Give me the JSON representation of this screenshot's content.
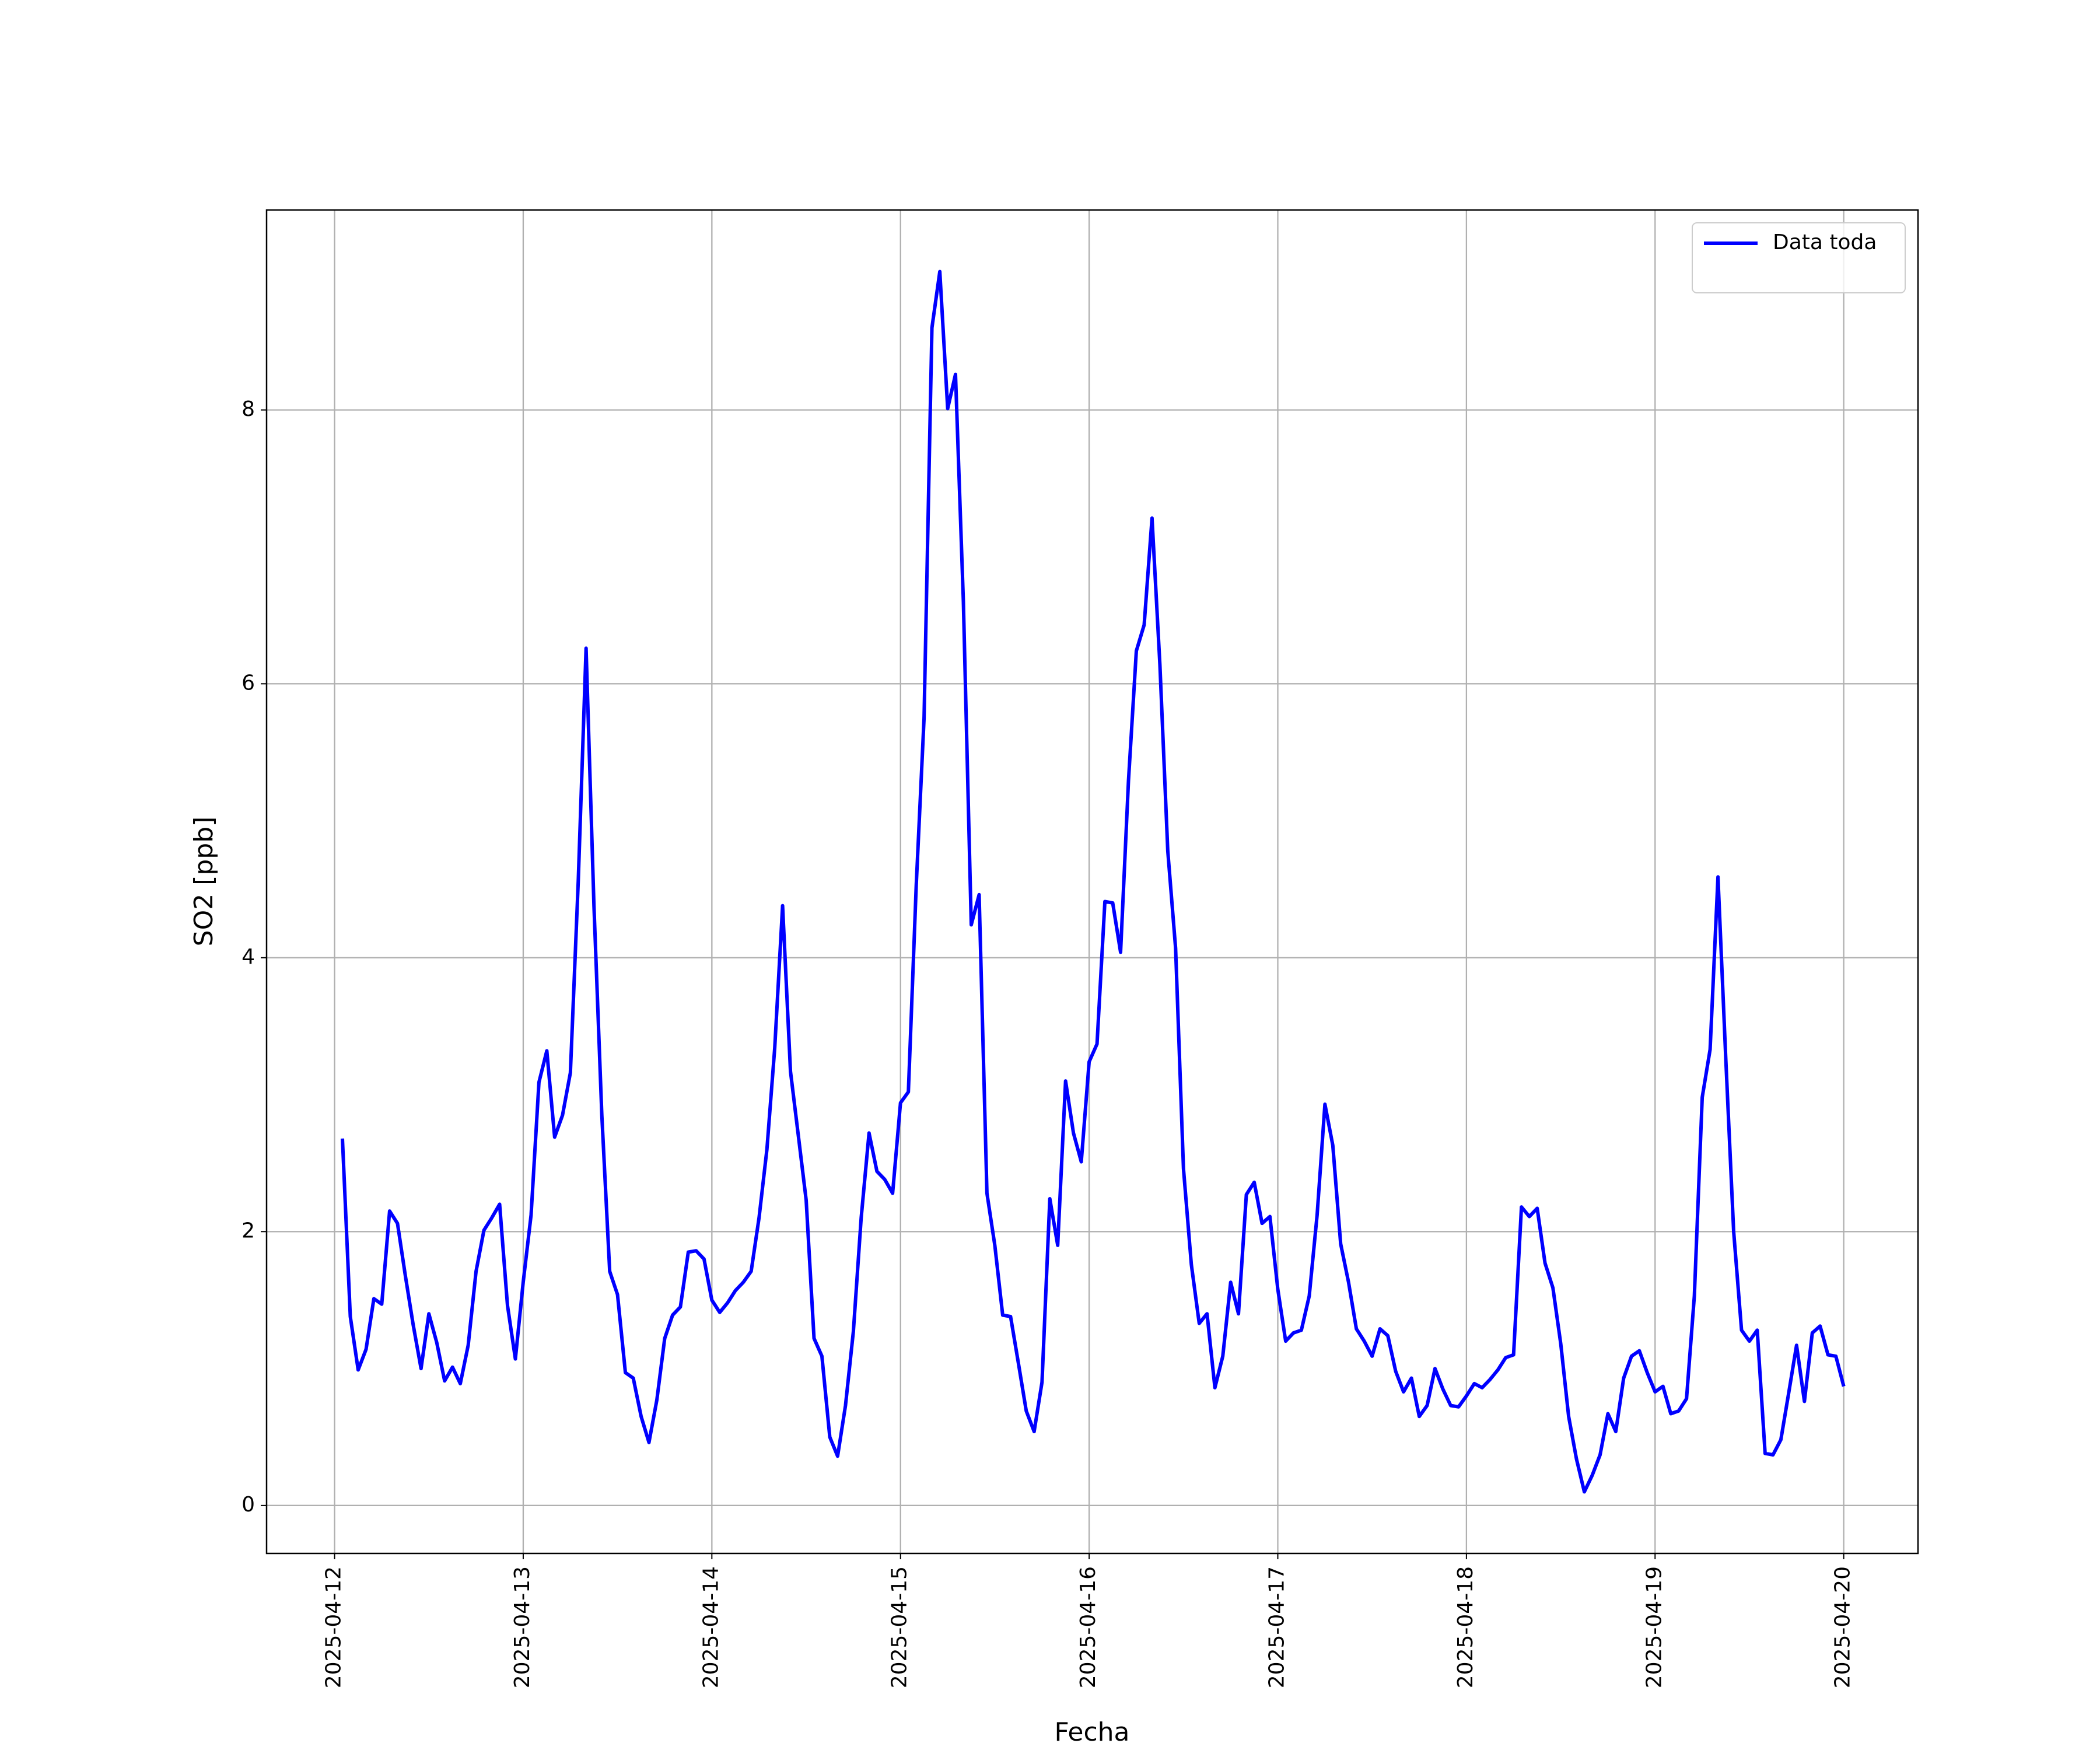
{
  "chart_data": {
    "type": "line",
    "x_label": "Fecha",
    "y_label": "SO2 [ppb]",
    "x": [
      "2025-04-12 01:00",
      "2025-04-12 02:00",
      "2025-04-12 03:00",
      "2025-04-12 04:00",
      "2025-04-12 05:00",
      "2025-04-12 06:00",
      "2025-04-12 07:00",
      "2025-04-12 08:00",
      "2025-04-12 09:00",
      "2025-04-12 10:00",
      "2025-04-12 11:00",
      "2025-04-12 12:00",
      "2025-04-12 13:00",
      "2025-04-12 14:00",
      "2025-04-12 15:00",
      "2025-04-12 16:00",
      "2025-04-12 17:00",
      "2025-04-12 18:00",
      "2025-04-12 19:00",
      "2025-04-12 20:00",
      "2025-04-12 21:00",
      "2025-04-12 22:00",
      "2025-04-12 23:00",
      "2025-04-13 00:00",
      "2025-04-13 01:00",
      "2025-04-13 02:00",
      "2025-04-13 03:00",
      "2025-04-13 04:00",
      "2025-04-13 05:00",
      "2025-04-13 06:00",
      "2025-04-13 07:00",
      "2025-04-13 08:00",
      "2025-04-13 09:00",
      "2025-04-13 10:00",
      "2025-04-13 11:00",
      "2025-04-13 12:00",
      "2025-04-13 13:00",
      "2025-04-13 14:00",
      "2025-04-13 15:00",
      "2025-04-13 16:00",
      "2025-04-13 17:00",
      "2025-04-13 18:00",
      "2025-04-13 19:00",
      "2025-04-13 20:00",
      "2025-04-13 21:00",
      "2025-04-13 22:00",
      "2025-04-13 23:00",
      "2025-04-14 00:00",
      "2025-04-14 01:00",
      "2025-04-14 02:00",
      "2025-04-14 03:00",
      "2025-04-14 04:00",
      "2025-04-14 05:00",
      "2025-04-14 06:00",
      "2025-04-14 07:00",
      "2025-04-14 08:00",
      "2025-04-14 09:00",
      "2025-04-14 10:00",
      "2025-04-14 11:00",
      "2025-04-14 12:00",
      "2025-04-14 13:00",
      "2025-04-14 14:00",
      "2025-04-14 15:00",
      "2025-04-14 16:00",
      "2025-04-14 17:00",
      "2025-04-14 18:00",
      "2025-04-14 19:00",
      "2025-04-14 20:00",
      "2025-04-14 21:00",
      "2025-04-14 22:00",
      "2025-04-14 23:00",
      "2025-04-15 00:00",
      "2025-04-15 01:00",
      "2025-04-15 02:00",
      "2025-04-15 03:00",
      "2025-04-15 04:00",
      "2025-04-15 05:00",
      "2025-04-15 06:00",
      "2025-04-15 07:00",
      "2025-04-15 08:00",
      "2025-04-15 09:00",
      "2025-04-15 10:00",
      "2025-04-15 11:00",
      "2025-04-15 12:00",
      "2025-04-15 13:00",
      "2025-04-15 14:00",
      "2025-04-15 15:00",
      "2025-04-15 16:00",
      "2025-04-15 17:00",
      "2025-04-15 18:00",
      "2025-04-15 19:00",
      "2025-04-15 20:00",
      "2025-04-15 21:00",
      "2025-04-15 22:00",
      "2025-04-15 23:00",
      "2025-04-16 00:00",
      "2025-04-16 01:00",
      "2025-04-16 02:00",
      "2025-04-16 03:00",
      "2025-04-16 04:00",
      "2025-04-16 05:00",
      "2025-04-16 06:00",
      "2025-04-16 07:00",
      "2025-04-16 08:00",
      "2025-04-16 09:00",
      "2025-04-16 10:00",
      "2025-04-16 11:00",
      "2025-04-16 12:00",
      "2025-04-16 13:00",
      "2025-04-16 14:00",
      "2025-04-16 15:00",
      "2025-04-16 16:00",
      "2025-04-16 17:00",
      "2025-04-16 18:00",
      "2025-04-16 19:00",
      "2025-04-16 20:00",
      "2025-04-16 21:00",
      "2025-04-16 22:00",
      "2025-04-16 23:00",
      "2025-04-17 00:00",
      "2025-04-17 01:00",
      "2025-04-17 02:00",
      "2025-04-17 03:00",
      "2025-04-17 04:00",
      "2025-04-17 05:00",
      "2025-04-17 06:00",
      "2025-04-17 07:00",
      "2025-04-17 08:00",
      "2025-04-17 09:00",
      "2025-04-17 10:00",
      "2025-04-17 11:00",
      "2025-04-17 12:00",
      "2025-04-17 13:00",
      "2025-04-17 14:00",
      "2025-04-17 15:00",
      "2025-04-17 16:00",
      "2025-04-17 17:00",
      "2025-04-17 18:00",
      "2025-04-17 19:00",
      "2025-04-17 20:00",
      "2025-04-17 21:00",
      "2025-04-17 22:00",
      "2025-04-17 23:00",
      "2025-04-18 00:00",
      "2025-04-18 01:00",
      "2025-04-18 02:00",
      "2025-04-18 03:00",
      "2025-04-18 04:00",
      "2025-04-18 05:00",
      "2025-04-18 06:00",
      "2025-04-18 07:00",
      "2025-04-18 08:00",
      "2025-04-18 09:00",
      "2025-04-18 10:00",
      "2025-04-18 11:00",
      "2025-04-18 12:00",
      "2025-04-18 13:00",
      "2025-04-18 14:00",
      "2025-04-18 15:00",
      "2025-04-18 16:00",
      "2025-04-18 17:00",
      "2025-04-18 18:00",
      "2025-04-18 19:00",
      "2025-04-18 20:00",
      "2025-04-18 21:00",
      "2025-04-18 22:00",
      "2025-04-18 23:00",
      "2025-04-19 00:00",
      "2025-04-19 01:00",
      "2025-04-19 02:00",
      "2025-04-19 03:00",
      "2025-04-19 04:00",
      "2025-04-19 05:00",
      "2025-04-19 06:00",
      "2025-04-19 07:00",
      "2025-04-19 08:00",
      "2025-04-19 09:00",
      "2025-04-19 10:00",
      "2025-04-19 11:00",
      "2025-04-19 12:00",
      "2025-04-19 13:00",
      "2025-04-19 14:00",
      "2025-04-19 15:00",
      "2025-04-19 16:00",
      "2025-04-19 17:00",
      "2025-04-19 18:00",
      "2025-04-19 19:00",
      "2025-04-19 20:00",
      "2025-04-19 21:00",
      "2025-04-19 22:00",
      "2025-04-19 23:00",
      "2025-04-20 00:00"
    ],
    "series": [
      {
        "name": "Data toda",
        "color": "#0000ff",
        "values": [
          2.68,
          1.38,
          0.99,
          1.14,
          1.51,
          1.47,
          2.15,
          2.06,
          1.68,
          1.32,
          1.0,
          1.4,
          1.19,
          0.91,
          1.01,
          0.89,
          1.17,
          1.71,
          2.01,
          2.1,
          2.2,
          1.46,
          1.07,
          1.63,
          2.12,
          3.09,
          3.32,
          2.69,
          2.85,
          3.16,
          4.56,
          6.26,
          4.38,
          2.85,
          1.71,
          1.54,
          0.97,
          0.93,
          0.65,
          0.46,
          0.77,
          1.22,
          1.39,
          1.45,
          1.85,
          1.86,
          1.8,
          1.5,
          1.41,
          1.48,
          1.57,
          1.63,
          1.71,
          2.1,
          2.6,
          3.34,
          4.38,
          3.17,
          2.7,
          2.23,
          1.22,
          1.09,
          0.5,
          0.36,
          0.73,
          1.27,
          2.1,
          2.72,
          2.44,
          2.38,
          2.28,
          2.94,
          3.02,
          4.53,
          5.75,
          8.6,
          9.01,
          8.01,
          8.26,
          6.6,
          4.24,
          4.46,
          2.28,
          1.9,
          1.39,
          1.38,
          1.04,
          0.69,
          0.54,
          0.9,
          2.24,
          1.9,
          3.1,
          2.72,
          2.51,
          3.24,
          3.37,
          4.41,
          4.4,
          4.04,
          5.29,
          6.24,
          6.43,
          7.21,
          6.14,
          4.78,
          4.07,
          2.46,
          1.76,
          1.33,
          1.4,
          0.86,
          1.09,
          1.63,
          1.4,
          2.27,
          2.36,
          2.06,
          2.11,
          1.58,
          1.2,
          1.26,
          1.28,
          1.53,
          2.12,
          2.93,
          2.63,
          1.91,
          1.63,
          1.29,
          1.2,
          1.09,
          1.29,
          1.24,
          0.98,
          0.83,
          0.93,
          0.65,
          0.73,
          1.0,
          0.85,
          0.73,
          0.72,
          0.8,
          0.89,
          0.86,
          0.92,
          0.99,
          1.08,
          1.1,
          2.18,
          2.11,
          2.17,
          1.77,
          1.59,
          1.18,
          0.65,
          0.34,
          0.1,
          0.22,
          0.37,
          0.67,
          0.54,
          0.93,
          1.09,
          1.13,
          0.97,
          0.83,
          0.87,
          0.67,
          0.69,
          0.78,
          1.53,
          2.98,
          3.33,
          4.59,
          3.26,
          2.0,
          1.28,
          1.2,
          1.28,
          0.38,
          0.37,
          0.48,
          0.82,
          1.17,
          0.76,
          1.26,
          1.31,
          1.1,
          1.09,
          0.87
        ]
      }
    ],
    "xlim": [
      "2025-04-11 15:21",
      "2025-04-20 09:27"
    ],
    "xticks": [
      "2025-04-12",
      "2025-04-13",
      "2025-04-14",
      "2025-04-15",
      "2025-04-16",
      "2025-04-17",
      "2025-04-18",
      "2025-04-19",
      "2025-04-20"
    ],
    "ylim": [
      -0.35,
      9.46
    ],
    "yticks": [
      0,
      2,
      4,
      6,
      8
    ],
    "grid": true,
    "legend": "upper right"
  }
}
